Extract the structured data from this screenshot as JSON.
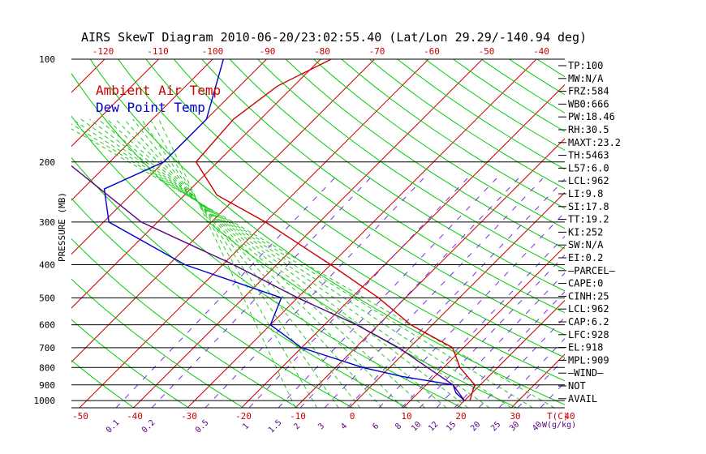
{
  "chart_data": {
    "type": "line",
    "title": "AIRS SkewT Diagram 2010-06-20/23:02:55.40 (Lat/Lon 29.29/-140.94 deg)",
    "ylabel": "PRESSURE (MB)",
    "pressure_ticks": [
      "100",
      "200",
      "300",
      "400",
      "500",
      "600",
      "700",
      "800",
      "900",
      "1000"
    ],
    "pressure_values": [
      100,
      200,
      300,
      400,
      500,
      600,
      700,
      800,
      900,
      1000
    ],
    "temp_ticks_top": [
      "-120",
      "-110",
      "-100",
      "-90",
      "-80",
      "-70",
      "-60",
      "-50",
      "-40"
    ],
    "temp_ticks_bottom": [
      "-50",
      "-40",
      "-30",
      "-20",
      "-10",
      "0",
      "10",
      "20",
      "30",
      "40"
    ],
    "temp_axis_label": "T(C)",
    "mixing_ratio_labels": [
      "0.1",
      "0.2",
      "0.5",
      "1",
      "1.5",
      "2",
      "3",
      "4",
      "6",
      "8",
      "10",
      "12",
      "15",
      "20",
      "25",
      "30",
      "40"
    ],
    "mixing_ratio_axis_label": "W(g/kg)",
    "legend": {
      "ambient": "Ambient Air Temp",
      "dewpoint": "Dew Point Temp"
    },
    "series": [
      {
        "name": "Ambient Air Temp",
        "color": "#cc0000",
        "points": [
          [
            100,
            -68
          ],
          [
            120,
            -73
          ],
          [
            150,
            -75
          ],
          [
            200,
            -74
          ],
          [
            250,
            -64
          ],
          [
            300,
            -50
          ],
          [
            400,
            -30
          ],
          [
            500,
            -15
          ],
          [
            600,
            -4
          ],
          [
            700,
            8
          ],
          [
            800,
            13
          ],
          [
            900,
            19
          ],
          [
            950,
            20
          ],
          [
            1000,
            21
          ]
        ]
      },
      {
        "name": "Dew Point Temp",
        "color": "#0000cc",
        "points": [
          [
            100,
            -88
          ],
          [
            150,
            -80
          ],
          [
            200,
            -80
          ],
          [
            240,
            -86
          ],
          [
            300,
            -79
          ],
          [
            400,
            -57
          ],
          [
            500,
            -33
          ],
          [
            600,
            -30
          ],
          [
            700,
            -20
          ],
          [
            800,
            -5
          ],
          [
            850,
            4
          ],
          [
            900,
            15
          ],
          [
            950,
            17
          ],
          [
            1000,
            20
          ]
        ]
      },
      {
        "name": "Parcel",
        "color": "#5a0088",
        "points": [
          [
            100,
            -135
          ],
          [
            200,
            -98
          ],
          [
            300,
            -73
          ],
          [
            400,
            -48
          ],
          [
            500,
            -30
          ],
          [
            600,
            -14
          ],
          [
            700,
            -2
          ],
          [
            800,
            7
          ],
          [
            900,
            15
          ],
          [
            1000,
            20
          ]
        ]
      }
    ],
    "line_colors": {
      "isotherm": "#d00000",
      "dry_adiabat": "#00cc00",
      "moist_adiabat": "#22cc22",
      "mixing_ratio": "#7a2de8",
      "pressure": "#000000"
    }
  },
  "stats": [
    "TP:100",
    "MW:N/A",
    "FRZ:584",
    "WB0:666",
    "PW:18.46",
    "RH:30.5",
    "MAXT:23.2",
    "TH:5463",
    "L57:6.0",
    "LCL:962",
    "LI:9.8",
    "SI:17.8",
    "TT:19.2",
    "KI:252",
    "SW:N/A",
    "EI:0.2",
    "—PARCEL—",
    "CAPE:0",
    "CINH:25",
    "LCL:962",
    "CAP:6.2",
    "LFC:928",
    "EL:918",
    "MPL:909",
    "—WIND—",
    "NOT",
    "AVAIL"
  ]
}
